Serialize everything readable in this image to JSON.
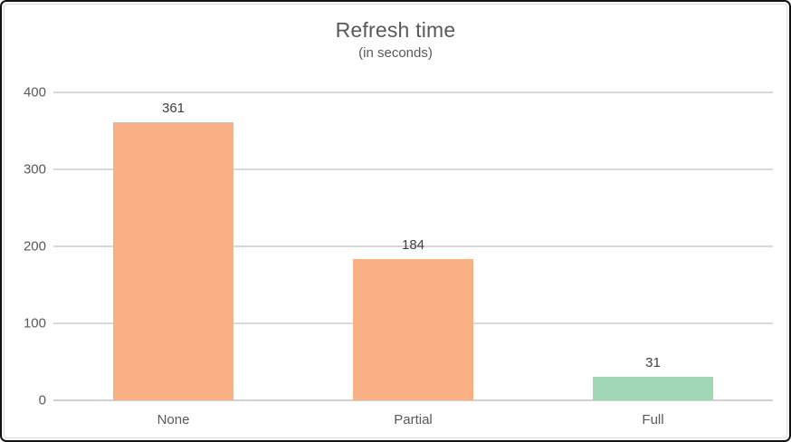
{
  "chart_data": {
    "type": "bar",
    "title": "Refresh time",
    "subtitle": "(in seconds)",
    "categories": [
      "None",
      "Partial",
      "Full"
    ],
    "values": [
      361,
      184,
      31
    ],
    "data_labels": [
      "361",
      "184",
      "31"
    ],
    "bar_colors": [
      "#F8B084",
      "#F8B084",
      "#A2D7B5"
    ],
    "xlabel": "",
    "ylabel": "",
    "ylim": [
      0,
      400
    ],
    "yticks": [
      0,
      100,
      200,
      300,
      400
    ],
    "ytick_labels": [
      "0",
      "100",
      "200",
      "300",
      "400"
    ],
    "grid": true,
    "legend": false,
    "colors": {
      "title_text": "#595959",
      "axis_text": "#595959",
      "data_label_text": "#404040",
      "gridline": "#d9d9d9",
      "axis_line": "#d2d0d0",
      "background": "#ffffff",
      "frame_border": "#121212"
    }
  }
}
